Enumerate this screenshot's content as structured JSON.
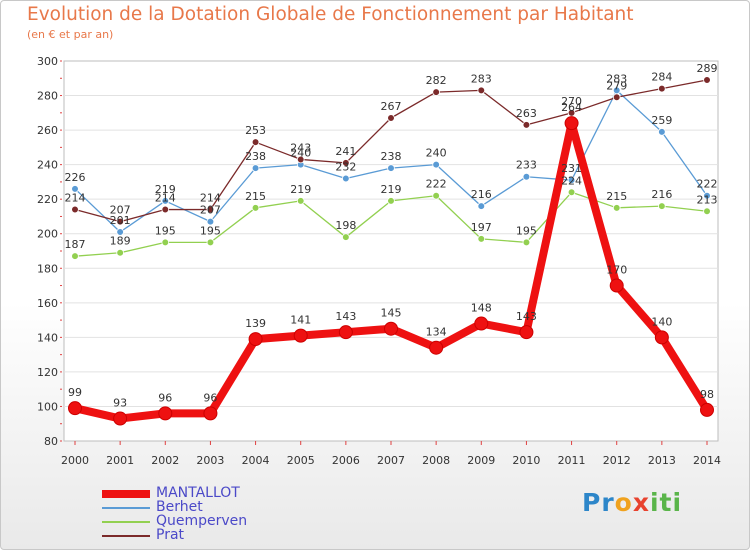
{
  "title": "Evolution de la Dotation Globale de Fonctionnement par Habitant",
  "subtitle": "(en € et par an)",
  "logo_text": "Proxiti",
  "chart_data": {
    "type": "line",
    "title": "Evolution de la Dotation Globale de Fonctionnement par Habitant",
    "ylabel": "(en € et par an)",
    "xlabel": "",
    "ylim": [
      80,
      300
    ],
    "yticks": [
      80,
      100,
      120,
      140,
      160,
      180,
      200,
      220,
      240,
      260,
      280,
      300
    ],
    "grid": true,
    "legend": "bottom-left",
    "x": [
      "2000",
      "2001",
      "2002",
      "2003",
      "2004",
      "2005",
      "2006",
      "2007",
      "2008",
      "2009",
      "2010",
      "2011",
      "2012",
      "2013",
      "2014"
    ],
    "series": [
      {
        "name": "Berhet",
        "color": "#5a9bd5",
        "values": [
          226,
          201,
          219,
          207,
          238,
          240,
          232,
          238,
          240,
          216,
          233,
          231,
          283,
          259,
          222
        ]
      },
      {
        "name": "Quemperven",
        "color": "#92d050",
        "values": [
          187,
          189,
          195,
          195,
          215,
          219,
          198,
          219,
          222,
          197,
          195,
          224,
          215,
          216,
          213
        ]
      },
      {
        "name": "Prat",
        "color": "#7b2a2a",
        "values": [
          214,
          207,
          214,
          214,
          253,
          243,
          241,
          267,
          282,
          283,
          263,
          270,
          279,
          284,
          289
        ]
      },
      {
        "name": "MANTALLOT",
        "color": "#ee1111",
        "values": [
          99,
          93,
          96,
          96,
          139,
          141,
          143,
          145,
          134,
          148,
          143,
          264,
          170,
          140,
          98
        ]
      }
    ],
    "data_labels": [
      {
        "series": "Berhet",
        "labels": [
          "226",
          "201",
          "219",
          "207",
          "238",
          "240",
          "232",
          "238",
          "240",
          "216",
          "233",
          "231",
          "283",
          "259",
          "222"
        ]
      },
      {
        "series": "Quemperven",
        "labels": [
          "187",
          "189",
          "195",
          "195",
          "215",
          "219",
          "198",
          "219",
          "222",
          "197",
          "195",
          "224",
          "215",
          "216",
          "213"
        ]
      },
      {
        "series": "Prat",
        "labels": [
          "214",
          "207",
          "214",
          "214",
          "253",
          "243",
          "241",
          "267",
          "282",
          "283",
          "263",
          "270",
          "279",
          "284",
          "289"
        ]
      },
      {
        "series": "MANTALLOT",
        "labels": [
          "99",
          "93",
          "96",
          "96",
          "139",
          "141",
          "143",
          "145",
          "134",
          "148",
          "143",
          "264",
          "170",
          "140",
          "98"
        ]
      }
    ]
  },
  "legend": [
    {
      "label": "MANTALLOT",
      "color": "#ee1111"
    },
    {
      "label": "Berhet",
      "color": "#5a9bd5"
    },
    {
      "label": "Quemperven",
      "color": "#92d050"
    },
    {
      "label": "Prat",
      "color": "#7b2a2a"
    }
  ]
}
